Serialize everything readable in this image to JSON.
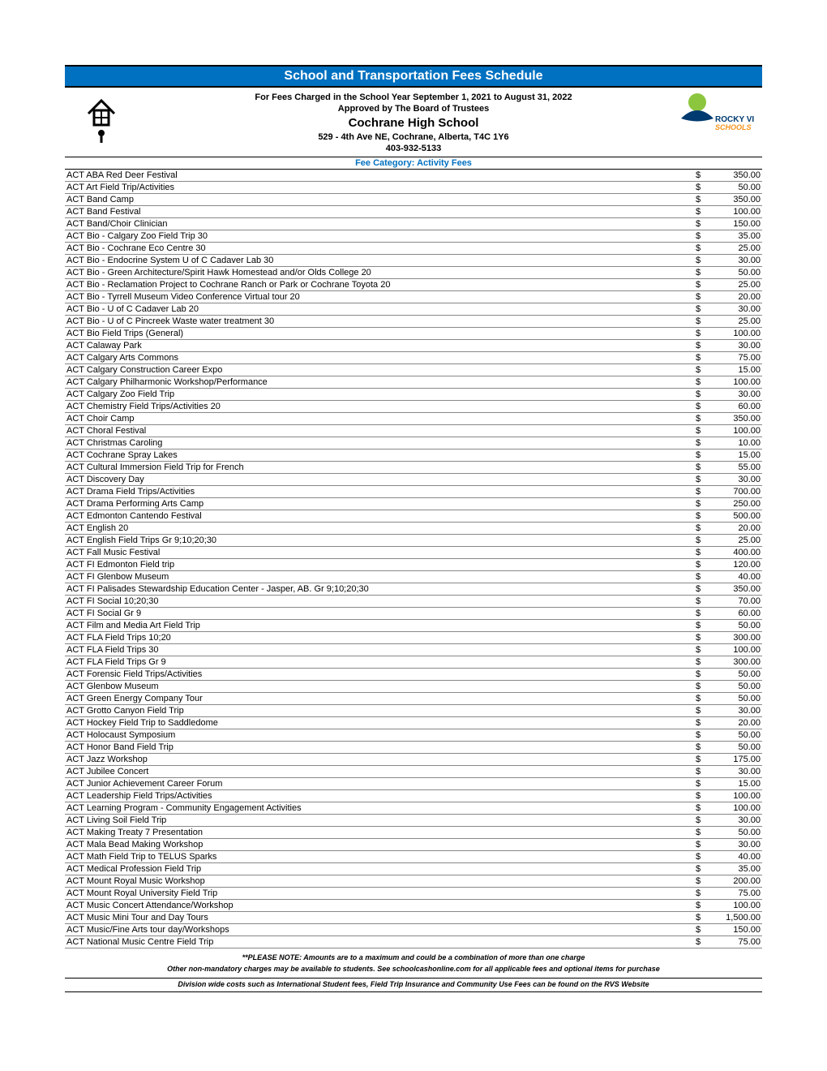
{
  "header": {
    "title": "School and Transportation Fees Schedule",
    "line1": "For Fees Charged in the School Year September 1, 2021 to August 31, 2022",
    "approved": "Approved by The Board of Trustees",
    "school": "Cochrane High School",
    "address": "529 - 4th Ave NE, Cochrane, Alberta, T4C 1Y6",
    "phone": "403-932-5133",
    "category": "Fee Category: Activity Fees",
    "logo_right_top": "ROCKY VIEW",
    "logo_right_bottom": "SCHOOLS",
    "colors": {
      "title_bg": "#0070c0",
      "title_fg": "#ffffff",
      "accent": "#0070c0",
      "logo_green": "#8cc63f",
      "logo_blue": "#003a70",
      "logo_orange": "#f7941d"
    }
  },
  "fees": [
    {
      "name": "ACT ABA Red Deer Festival",
      "amount": "350.00"
    },
    {
      "name": "ACT Art Field Trip/Activities",
      "amount": "50.00"
    },
    {
      "name": "ACT Band Camp",
      "amount": "350.00"
    },
    {
      "name": "ACT Band Festival",
      "amount": "100.00"
    },
    {
      "name": "ACT Band/Choir Clinician",
      "amount": "150.00"
    },
    {
      "name": "ACT Bio - Calgary Zoo Field Trip 30",
      "amount": "35.00"
    },
    {
      "name": "ACT Bio - Cochrane Eco Centre 30",
      "amount": "25.00"
    },
    {
      "name": "ACT Bio - Endocrine System U of C Cadaver Lab 30",
      "amount": "30.00"
    },
    {
      "name": "ACT Bio - Green Architecture/Spirit Hawk Homestead and/or Olds College 20",
      "amount": "50.00"
    },
    {
      "name": "ACT Bio - Reclamation Project to Cochrane Ranch or Park or Cochrane Toyota 20",
      "amount": "25.00"
    },
    {
      "name": "ACT Bio - Tyrrell Museum Video Conference Virtual tour 20",
      "amount": "20.00"
    },
    {
      "name": "ACT Bio - U of C Cadaver Lab  20",
      "amount": "30.00"
    },
    {
      "name": "ACT Bio - U of C Pincreek Waste water treatment 30",
      "amount": "25.00"
    },
    {
      "name": "ACT Bio Field Trips (General)",
      "amount": "100.00"
    },
    {
      "name": "ACT Calaway Park",
      "amount": "30.00"
    },
    {
      "name": "ACT Calgary Arts Commons",
      "amount": "75.00"
    },
    {
      "name": "ACT Calgary Construction Career Expo",
      "amount": "15.00"
    },
    {
      "name": "ACT Calgary Philharmonic Workshop/Performance",
      "amount": "100.00"
    },
    {
      "name": "ACT Calgary Zoo Field Trip",
      "amount": "30.00"
    },
    {
      "name": "ACT Chemistry Field Trips/Activities 20",
      "amount": "60.00"
    },
    {
      "name": "ACT Choir Camp",
      "amount": "350.00"
    },
    {
      "name": "ACT Choral Festival",
      "amount": "100.00"
    },
    {
      "name": "ACT Christmas Caroling",
      "amount": "10.00"
    },
    {
      "name": "ACT Cochrane Spray Lakes",
      "amount": "15.00"
    },
    {
      "name": "ACT Cultural Immersion Field Trip for French",
      "amount": "55.00"
    },
    {
      "name": "ACT Discovery Day",
      "amount": "30.00"
    },
    {
      "name": "ACT Drama Field Trips/Activities",
      "amount": "700.00"
    },
    {
      "name": "ACT Drama Performing Arts Camp",
      "amount": "250.00"
    },
    {
      "name": "ACT Edmonton Cantendo Festival",
      "amount": "500.00"
    },
    {
      "name": "ACT English 20",
      "amount": "20.00"
    },
    {
      "name": "ACT English Field Trips  Gr 9;10;20;30",
      "amount": "25.00"
    },
    {
      "name": "ACT Fall Music Festival",
      "amount": "400.00"
    },
    {
      "name": "ACT FI Edmonton Field trip",
      "amount": "120.00"
    },
    {
      "name": "ACT FI Glenbow Museum",
      "amount": "40.00"
    },
    {
      "name": "ACT FI Palisades Stewardship Education Center - Jasper, AB.  Gr 9;10;20;30",
      "amount": "350.00"
    },
    {
      "name": "ACT FI Social 10;20;30",
      "amount": "70.00"
    },
    {
      "name": "ACT FI Social Gr 9",
      "amount": "60.00"
    },
    {
      "name": "ACT Film and Media Art Field Trip",
      "amount": "50.00"
    },
    {
      "name": "ACT FLA Field Trips 10;20",
      "amount": "300.00"
    },
    {
      "name": "ACT FLA Field Trips 30",
      "amount": "100.00"
    },
    {
      "name": "ACT FLA Field Trips Gr 9",
      "amount": "300.00"
    },
    {
      "name": "ACT Forensic Field Trips/Activities",
      "amount": "50.00"
    },
    {
      "name": "ACT Glenbow Museum",
      "amount": "50.00"
    },
    {
      "name": "ACT Green Energy Company Tour",
      "amount": "50.00"
    },
    {
      "name": "ACT Grotto Canyon Field Trip",
      "amount": "30.00"
    },
    {
      "name": "ACT Hockey Field Trip to Saddledome",
      "amount": "20.00"
    },
    {
      "name": "ACT Holocaust Symposium",
      "amount": "50.00"
    },
    {
      "name": "ACT Honor Band Field Trip",
      "amount": "50.00"
    },
    {
      "name": "ACT Jazz Workshop",
      "amount": "175.00"
    },
    {
      "name": "ACT Jubilee Concert",
      "amount": "30.00"
    },
    {
      "name": "ACT Junior Achievement Career Forum",
      "amount": "15.00"
    },
    {
      "name": "ACT Leadership Field Trips/Activities",
      "amount": "100.00"
    },
    {
      "name": "ACT Learning Program - Community Engagement Activities",
      "amount": "100.00"
    },
    {
      "name": "ACT Living Soil Field Trip",
      "amount": "30.00"
    },
    {
      "name": "ACT Making Treaty 7 Presentation",
      "amount": "50.00"
    },
    {
      "name": "ACT Mala Bead Making Workshop",
      "amount": "30.00"
    },
    {
      "name": "ACT Math Field Trip to TELUS Sparks",
      "amount": "40.00"
    },
    {
      "name": "ACT Medical Profession Field Trip",
      "amount": "35.00"
    },
    {
      "name": "ACT Mount Royal Music Workshop",
      "amount": "200.00"
    },
    {
      "name": "ACT Mount Royal University Field Trip",
      "amount": "75.00"
    },
    {
      "name": "ACT Music Concert Attendance/Workshop",
      "amount": "100.00"
    },
    {
      "name": "ACT Music Mini Tour and Day Tours",
      "amount": "1,500.00"
    },
    {
      "name": "ACT Music/Fine Arts tour day/Workshops",
      "amount": "150.00"
    },
    {
      "name": "ACT National Music Centre Field Trip",
      "amount": "75.00"
    }
  ],
  "currency": "$",
  "footnotes": {
    "note1": "**PLEASE NOTE: Amounts are to a maximum and could be a combination of more than one charge",
    "note2": "Other non-mandatory charges may be available to students. See schoolcashonline.com for all applicable fees and optional items for purchase",
    "note3": "Division wide costs such as International Student fees, Field Trip Insurance and Community Use Fees can be found on the RVS Website"
  }
}
